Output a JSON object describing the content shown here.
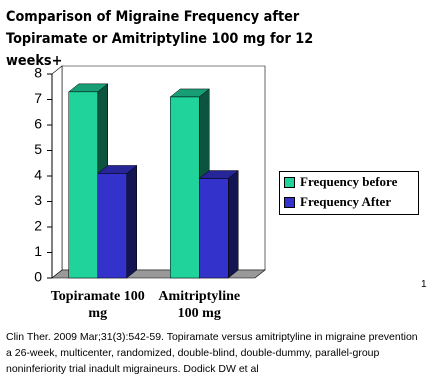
{
  "chart_data": {
    "type": "bar3d",
    "title": "Comparison of Migraine Frequency after Topiramate or Amitriptyline 100 mg for 12 weeks+",
    "categories": [
      "Topiramate 100 mg",
      "Amitriptyline 100 mg"
    ],
    "series": [
      {
        "name": "Frequency before",
        "color": "#1fd39a",
        "values": [
          7.3,
          7.1
        ]
      },
      {
        "name": "Frequency After",
        "color": "#3333cc",
        "values": [
          4.1,
          3.9
        ]
      }
    ],
    "ylim": [
      0,
      8
    ],
    "yticks": [
      0,
      1,
      2,
      3,
      4,
      5,
      6,
      7,
      8
    ],
    "legend": "right",
    "footnote": "Clin Ther. 2009 Mar;31(3):542-59. Topiramate versus amitriptyline in migraine prevention a 26-week, multicenter, randomized, double-blind, double-dummy, parallel-group noninferiority trial inadult migraineurs. Dodick DW et al",
    "page_mark": "1"
  }
}
